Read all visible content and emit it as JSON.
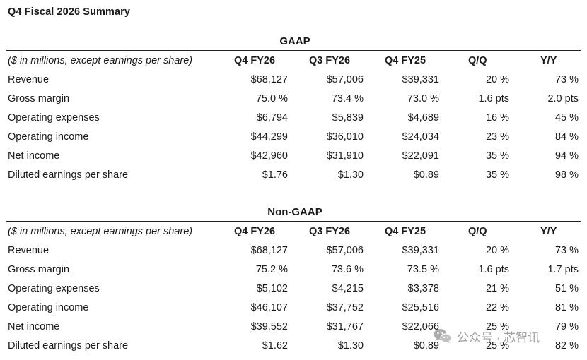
{
  "page": {
    "title": "Q4 Fiscal 2026 Summary"
  },
  "column_headers": {
    "label": "($ in millions, except earnings per share)",
    "q4fy26": "Q4 FY26",
    "q3fy26": "Q3 FY26",
    "q4fy25": "Q4 FY25",
    "qq": "Q/Q",
    "yy": "Y/Y"
  },
  "gaap": {
    "title": "GAAP",
    "rows": [
      {
        "label": "Revenue",
        "q4fy26": "$68,127",
        "q3fy26": "$57,006",
        "q4fy25": "$39,331",
        "qq": "20 %",
        "yy": "73 %"
      },
      {
        "label": "Gross margin",
        "q4fy26": "75.0 %",
        "q3fy26": "73.4 %",
        "q4fy25": "73.0 %",
        "qq": "1.6 pts",
        "yy": "2.0 pts"
      },
      {
        "label": "Operating expenses",
        "q4fy26": "$6,794",
        "q3fy26": "$5,839",
        "q4fy25": "$4,689",
        "qq": "16 %",
        "yy": "45 %"
      },
      {
        "label": "Operating income",
        "q4fy26": "$44,299",
        "q3fy26": "$36,010",
        "q4fy25": "$24,034",
        "qq": "23 %",
        "yy": "84 %"
      },
      {
        "label": "Net income",
        "q4fy26": "$42,960",
        "q3fy26": "$31,910",
        "q4fy25": "$22,091",
        "qq": "35 %",
        "yy": "94 %"
      },
      {
        "label": "Diluted earnings per share",
        "q4fy26": "$1.76",
        "q3fy26": "$1.30",
        "q4fy25": "$0.89",
        "qq": "35 %",
        "yy": "98 %"
      }
    ]
  },
  "nongaap": {
    "title": "Non-GAAP",
    "rows": [
      {
        "label": "Revenue",
        "q4fy26": "$68,127",
        "q3fy26": "$57,006",
        "q4fy25": "$39,331",
        "qq": "20 %",
        "yy": "73 %"
      },
      {
        "label": "Gross margin",
        "q4fy26": "75.2 %",
        "q3fy26": "73.6 %",
        "q4fy25": "73.5 %",
        "qq": "1.6 pts",
        "yy": "1.7 pts"
      },
      {
        "label": "Operating expenses",
        "q4fy26": "$5,102",
        "q3fy26": "$4,215",
        "q4fy25": "$3,378",
        "qq": "21 %",
        "yy": "51 %"
      },
      {
        "label": "Operating income",
        "q4fy26": "$46,107",
        "q3fy26": "$37,752",
        "q4fy25": "$25,516",
        "qq": "22 %",
        "yy": "81 %"
      },
      {
        "label": "Net income",
        "q4fy26": "$39,552",
        "q3fy26": "$31,767",
        "q4fy25": "$22,066",
        "qq": "25 %",
        "yy": "79 %"
      },
      {
        "label": "Diluted earnings per share",
        "q4fy26": "$1.62",
        "q3fy26": "$1.30",
        "q4fy25": "$0.89",
        "qq": "25 %",
        "yy": "82 %"
      }
    ]
  },
  "watermark": {
    "text": "公众号 · 芯智讯",
    "icon": "wechat-icon"
  }
}
